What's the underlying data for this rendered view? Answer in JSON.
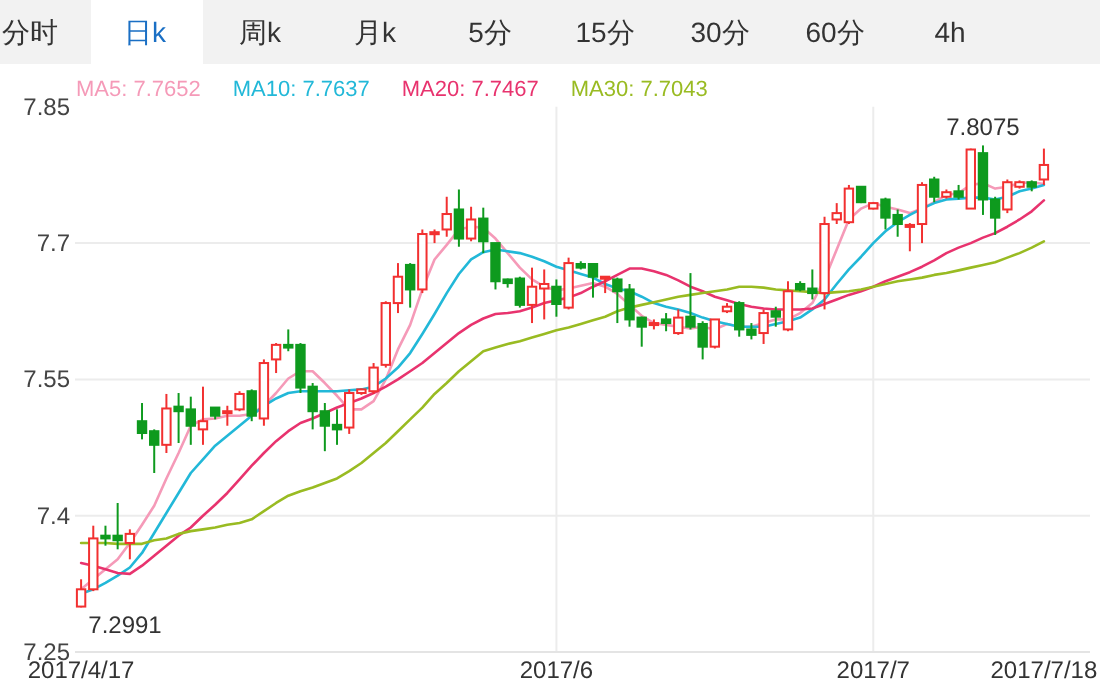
{
  "chart_data": {
    "type": "candlestick",
    "annotations": [
      "分时",
      "日k",
      "周k",
      "月k",
      "5分",
      "15分",
      "30分",
      "60分",
      "4h",
      {
        "text": "7.2991",
        "x": "2017/4/17",
        "y": 7.2991
      },
      {
        "text": "7.8075",
        "y": 7.8075
      }
    ],
    "categories": [
      "2017/4/17",
      null,
      null,
      null,
      null,
      null,
      null,
      null,
      null,
      null,
      null,
      null,
      null,
      null,
      null,
      null,
      null,
      null,
      null,
      null,
      null,
      null,
      null,
      null,
      null,
      null,
      null,
      null,
      null,
      null,
      null,
      null,
      null,
      null,
      null,
      null,
      null,
      null,
      null,
      "2017/6",
      null,
      null,
      null,
      null,
      null,
      null,
      null,
      null,
      null,
      null,
      null,
      null,
      null,
      null,
      null,
      null,
      null,
      null,
      null,
      null,
      null,
      null,
      null,
      null,
      null,
      "2017/7",
      null,
      null,
      null,
      null,
      null,
      null,
      null,
      null,
      null,
      null,
      null,
      null,
      null,
      "2017/7/18"
    ],
    "ohlc": [
      [
        7.3,
        7.33,
        7.2991,
        7.319
      ],
      [
        7.319,
        7.389,
        7.317,
        7.375
      ],
      [
        7.378,
        7.389,
        7.367,
        7.375
      ],
      [
        7.378,
        7.414,
        7.363,
        7.373
      ],
      [
        7.37,
        7.385,
        7.352,
        7.38
      ],
      [
        7.504,
        7.524,
        7.484,
        7.491
      ],
      [
        7.493,
        7.495,
        7.447,
        7.478
      ],
      [
        7.478,
        7.534,
        7.469,
        7.518
      ],
      [
        7.52,
        7.535,
        7.48,
        7.515
      ],
      [
        7.517,
        7.531,
        7.478,
        7.499
      ],
      [
        7.495,
        7.542,
        7.478,
        7.504
      ],
      [
        7.519,
        7.519,
        7.506,
        7.51
      ],
      [
        7.513,
        7.521,
        7.499,
        7.515
      ],
      [
        7.517,
        7.537,
        7.515,
        7.534
      ],
      [
        7.537,
        7.539,
        7.504,
        7.51
      ],
      [
        7.507,
        7.572,
        7.499,
        7.568
      ],
      [
        7.572,
        7.59,
        7.557,
        7.588
      ],
      [
        7.588,
        7.605,
        7.581,
        7.585
      ],
      [
        7.588,
        7.59,
        7.535,
        7.541
      ],
      [
        7.542,
        7.546,
        7.495,
        7.515
      ],
      [
        7.515,
        7.524,
        7.471,
        7.499
      ],
      [
        7.5,
        7.517,
        7.478,
        7.495
      ],
      [
        7.497,
        7.539,
        7.49,
        7.535
      ],
      [
        7.535,
        7.54,
        7.533,
        7.539
      ],
      [
        7.537,
        7.568,
        7.534,
        7.563
      ],
      [
        7.566,
        7.636,
        7.563,
        7.634
      ],
      [
        7.634,
        7.678,
        7.623,
        7.663
      ],
      [
        7.676,
        7.678,
        7.629,
        7.649
      ],
      [
        7.649,
        7.715,
        7.645,
        7.71
      ],
      [
        7.71,
        7.715,
        7.7,
        7.712
      ],
      [
        7.715,
        7.751,
        7.707,
        7.732
      ],
      [
        7.737,
        7.759,
        7.696,
        7.705
      ],
      [
        7.705,
        7.74,
        7.702,
        7.726
      ],
      [
        7.727,
        7.739,
        7.689,
        7.702
      ],
      [
        7.7,
        7.7,
        7.649,
        7.658
      ],
      [
        7.66,
        7.661,
        7.651,
        7.656
      ],
      [
        7.661,
        7.663,
        7.629,
        7.632
      ],
      [
        7.632,
        7.673,
        7.612,
        7.652
      ],
      [
        7.65,
        7.671,
        7.616,
        7.655
      ],
      [
        7.652,
        7.66,
        7.619,
        7.633
      ],
      [
        7.629,
        7.684,
        7.627,
        7.678
      ],
      [
        7.677,
        7.68,
        7.671,
        7.673
      ],
      [
        7.677,
        7.677,
        7.64,
        7.663
      ],
      [
        7.662,
        7.663,
        7.645,
        7.663
      ],
      [
        7.66,
        7.662,
        7.612,
        7.647
      ],
      [
        7.649,
        7.655,
        7.608,
        7.616
      ],
      [
        7.618,
        7.619,
        7.586,
        7.608
      ],
      [
        7.61,
        7.616,
        7.605,
        7.612
      ],
      [
        7.616,
        7.623,
        7.603,
        7.612
      ],
      [
        7.601,
        7.627,
        7.599,
        7.618
      ],
      [
        7.619,
        7.667,
        7.605,
        7.608
      ],
      [
        7.611,
        7.614,
        7.572,
        7.586
      ],
      [
        7.586,
        7.616,
        7.584,
        7.616
      ],
      [
        7.625,
        7.634,
        7.623,
        7.63
      ],
      [
        7.634,
        7.636,
        7.597,
        7.605
      ],
      [
        7.605,
        7.612,
        7.594,
        7.599
      ],
      [
        7.601,
        7.627,
        7.589,
        7.623
      ],
      [
        7.625,
        7.63,
        7.608,
        7.619
      ],
      [
        7.605,
        7.658,
        7.603,
        7.647
      ],
      [
        7.655,
        7.658,
        7.647,
        7.649
      ],
      [
        7.65,
        7.671,
        7.638,
        7.645
      ],
      [
        7.645,
        7.729,
        7.627,
        7.721
      ],
      [
        7.726,
        7.744,
        7.721,
        7.733
      ],
      [
        7.723,
        7.764,
        7.721,
        7.76
      ],
      [
        7.762,
        7.762,
        7.744,
        7.745
      ],
      [
        7.738,
        7.745,
        7.737,
        7.744
      ],
      [
        7.748,
        7.75,
        7.715,
        7.728
      ],
      [
        7.731,
        7.737,
        7.707,
        7.721
      ],
      [
        7.718,
        7.722,
        7.691,
        7.72
      ],
      [
        7.721,
        7.767,
        7.7,
        7.764
      ],
      [
        7.77,
        7.773,
        7.745,
        7.751
      ],
      [
        7.751,
        7.759,
        7.749,
        7.756
      ],
      [
        7.757,
        7.764,
        7.748,
        7.751
      ],
      [
        7.738,
        7.804,
        7.738,
        7.803
      ],
      [
        7.799,
        7.8075,
        7.731,
        7.748
      ],
      [
        7.748,
        7.751,
        7.709,
        7.728
      ],
      [
        7.737,
        7.77,
        7.733,
        7.767
      ],
      [
        7.762,
        7.769,
        7.76,
        7.767
      ],
      [
        7.767,
        7.769,
        7.757,
        7.762
      ],
      [
        7.77,
        7.804,
        7.764,
        7.786
      ]
    ],
    "series": [
      {
        "type": "line",
        "name": "MA5: 7.7652",
        "color": "#f59ab8",
        "values": [
          7.319,
          7.33,
          7.341,
          7.352,
          7.37,
          7.39,
          7.411,
          7.441,
          7.469,
          7.499,
          7.506,
          7.507,
          7.51,
          7.51,
          7.512,
          7.521,
          7.535,
          7.551,
          7.559,
          7.559,
          7.546,
          7.532,
          7.517,
          7.517,
          7.526,
          7.55,
          7.583,
          7.61,
          7.649,
          7.682,
          7.698,
          7.715,
          7.718,
          7.717,
          7.705,
          7.689,
          7.673,
          7.66,
          7.652,
          7.648,
          7.65,
          7.653,
          7.656,
          7.652,
          7.644,
          7.632,
          7.62,
          7.612,
          7.61,
          7.608,
          7.606,
          7.608,
          7.605,
          7.611,
          7.608,
          7.608,
          7.612,
          7.616,
          7.616,
          7.623,
          7.634,
          7.66,
          7.693,
          7.726,
          7.738,
          7.744,
          7.74,
          7.737,
          7.733,
          7.738,
          7.745,
          7.753,
          7.755,
          7.764,
          7.766,
          7.76,
          7.762,
          7.766,
          7.767,
          7.765
        ]
      },
      {
        "type": "line",
        "name": "MA10: 7.7637",
        "color": "#22b8d8",
        "values": [
          7.314,
          7.319,
          7.326,
          7.334,
          7.343,
          7.359,
          7.381,
          7.403,
          7.425,
          7.447,
          7.462,
          7.477,
          7.488,
          7.499,
          7.51,
          7.521,
          7.529,
          7.535,
          7.537,
          7.537,
          7.537,
          7.537,
          7.538,
          7.539,
          7.542,
          7.551,
          7.563,
          7.579,
          7.6,
          7.622,
          7.645,
          7.666,
          7.682,
          7.69,
          7.693,
          7.691,
          7.689,
          7.685,
          7.68,
          7.674,
          7.67,
          7.666,
          7.662,
          7.655,
          7.65,
          7.647,
          7.641,
          7.634,
          7.63,
          7.627,
          7.623,
          7.618,
          7.614,
          7.611,
          7.608,
          7.608,
          7.608,
          7.611,
          7.614,
          7.618,
          7.627,
          7.638,
          7.655,
          7.671,
          7.685,
          7.7,
          7.713,
          7.723,
          7.731,
          7.738,
          7.744,
          7.748,
          7.749,
          7.75,
          7.75,
          7.748,
          7.751,
          7.757,
          7.76,
          7.764
        ]
      },
      {
        "type": "line",
        "name": "MA20: 7.7467",
        "color": "#e8336e",
        "values": [
          7.348,
          7.345,
          7.341,
          7.337,
          7.336,
          7.345,
          7.356,
          7.367,
          7.378,
          7.387,
          7.4,
          7.412,
          7.425,
          7.44,
          7.455,
          7.469,
          7.482,
          7.493,
          7.502,
          7.507,
          7.513,
          7.519,
          7.524,
          7.529,
          7.535,
          7.542,
          7.55,
          7.559,
          7.568,
          7.579,
          7.59,
          7.601,
          7.61,
          7.617,
          7.622,
          7.623,
          7.625,
          7.629,
          7.634,
          7.637,
          7.64,
          7.645,
          7.652,
          7.658,
          7.665,
          7.672,
          7.672,
          7.669,
          7.665,
          7.659,
          7.652,
          7.647,
          7.641,
          7.637,
          7.633,
          7.63,
          7.628,
          7.627,
          7.627,
          7.627,
          7.628,
          7.633,
          7.638,
          7.643,
          7.647,
          7.652,
          7.658,
          7.663,
          7.668,
          7.674,
          7.681,
          7.689,
          7.695,
          7.7,
          7.706,
          7.711,
          7.718,
          7.726,
          7.735,
          7.747
        ]
      },
      {
        "type": "line",
        "name": "MA30: 7.7043",
        "color": "#99bb22",
        "values": [
          7.37,
          7.37,
          7.37,
          7.369,
          7.369,
          7.369,
          7.373,
          7.375,
          7.38,
          7.383,
          7.385,
          7.387,
          7.39,
          7.392,
          7.396,
          7.405,
          7.414,
          7.422,
          7.427,
          7.431,
          7.436,
          7.441,
          7.449,
          7.458,
          7.469,
          7.48,
          7.493,
          7.506,
          7.519,
          7.534,
          7.546,
          7.559,
          7.57,
          7.581,
          7.585,
          7.589,
          7.592,
          7.596,
          7.6,
          7.604,
          7.607,
          7.611,
          7.615,
          7.619,
          7.625,
          7.629,
          7.632,
          7.635,
          7.638,
          7.641,
          7.643,
          7.645,
          7.647,
          7.649,
          7.652,
          7.652,
          7.651,
          7.649,
          7.648,
          7.647,
          7.646,
          7.645,
          7.646,
          7.647,
          7.649,
          7.652,
          7.655,
          7.658,
          7.66,
          7.662,
          7.665,
          7.667,
          7.67,
          7.673,
          7.676,
          7.679,
          7.684,
          7.689,
          7.695,
          7.702
        ]
      }
    ],
    "ylim": [
      7.25,
      7.85
    ],
    "yticks": [
      7.25,
      7.4,
      7.55,
      7.7,
      7.85
    ],
    "grid": true,
    "legend": "top left"
  }
}
